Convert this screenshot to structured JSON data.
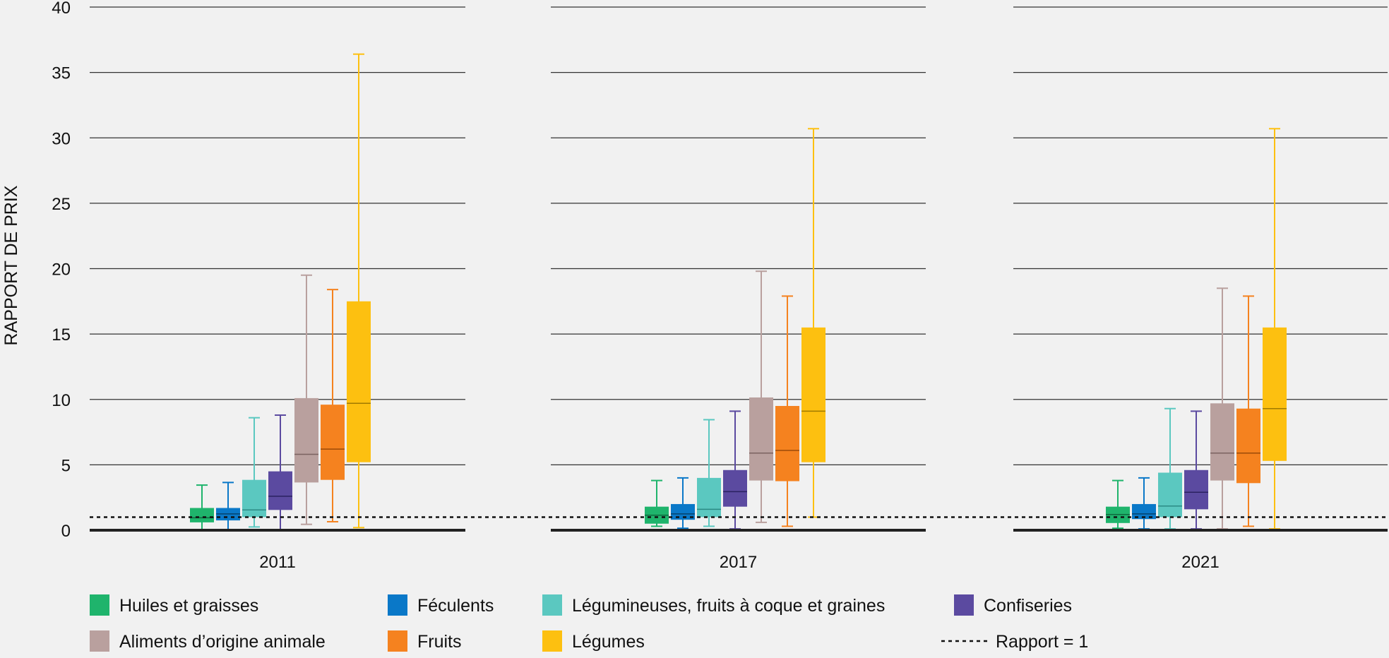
{
  "chart_data": {
    "type": "boxplot",
    "ylabel": "RAPPORT DE PRIX",
    "ylim": [
      0,
      40
    ],
    "yticks": [
      0,
      5,
      10,
      15,
      20,
      25,
      30,
      35,
      40
    ],
    "grid": true,
    "reference_line": {
      "value": 1,
      "label": "Rapport = 1",
      "style": "dotted"
    },
    "legend_placement": "bottom",
    "categories": [
      "Huiles et graisses",
      "Féculents",
      "Légumineuses, fruits à coque et graines",
      "Confiseries",
      "Aliments d’origine animale",
      "Fruits",
      "Légumes"
    ],
    "colors": [
      "#1fb46c",
      "#0a78c8",
      "#5bc8c0",
      "#5b4aa0",
      "#b9a09e",
      "#f5821f",
      "#fdc010"
    ],
    "medianColors": [
      "#0d6b3e",
      "#04436f",
      "#2b8a84",
      "#2b2260",
      "#7a6260",
      "#9c4a08",
      "#a07a00"
    ],
    "panels": [
      {
        "year": "2011",
        "boxes": [
          {
            "min": 0.05,
            "q1": 0.6,
            "median": 0.95,
            "q3": 1.7,
            "max": 3.45
          },
          {
            "min": 0.05,
            "q1": 0.75,
            "median": 1.25,
            "q3": 1.7,
            "max": 3.65
          },
          {
            "min": 0.25,
            "q1": 1.0,
            "median": 1.55,
            "q3": 3.85,
            "max": 8.6
          },
          {
            "min": 0.05,
            "q1": 1.55,
            "median": 2.6,
            "q3": 4.5,
            "max": 8.8
          },
          {
            "min": 0.45,
            "q1": 3.65,
            "median": 5.8,
            "q3": 10.1,
            "max": 19.5
          },
          {
            "min": 0.65,
            "q1": 3.85,
            "median": 6.2,
            "q3": 9.6,
            "max": 18.4
          },
          {
            "min": 0.2,
            "q1": 5.2,
            "median": 9.7,
            "q3": 17.5,
            "max": 36.4
          }
        ]
      },
      {
        "year": "2017",
        "boxes": [
          {
            "min": 0.3,
            "q1": 0.5,
            "median": 1.15,
            "q3": 1.8,
            "max": 3.8
          },
          {
            "min": 0.15,
            "q1": 0.8,
            "median": 1.25,
            "q3": 2.0,
            "max": 4.0
          },
          {
            "min": 0.3,
            "q1": 1.0,
            "median": 1.6,
            "q3": 4.0,
            "max": 8.45
          },
          {
            "min": 0.1,
            "q1": 1.8,
            "median": 2.95,
            "q3": 4.6,
            "max": 9.1
          },
          {
            "min": 0.6,
            "q1": 3.8,
            "median": 5.9,
            "q3": 10.15,
            "max": 19.8
          },
          {
            "min": 0.3,
            "q1": 3.75,
            "median": 6.1,
            "q3": 9.5,
            "max": 17.9
          },
          {
            "min": 1.0,
            "q1": 5.2,
            "median": 9.1,
            "q3": 15.5,
            "max": 30.7
          }
        ]
      },
      {
        "year": "2021",
        "boxes": [
          {
            "min": 0.15,
            "q1": 0.55,
            "median": 1.2,
            "q3": 1.8,
            "max": 3.8
          },
          {
            "min": 0.1,
            "q1": 0.85,
            "median": 1.25,
            "q3": 2.0,
            "max": 4.0
          },
          {
            "min": 0.1,
            "q1": 1.0,
            "median": 1.85,
            "q3": 4.4,
            "max": 9.3
          },
          {
            "min": 0.1,
            "q1": 1.6,
            "median": 2.9,
            "q3": 4.6,
            "max": 9.1
          },
          {
            "min": 0.1,
            "q1": 3.8,
            "median": 5.9,
            "q3": 9.7,
            "max": 18.5
          },
          {
            "min": 0.3,
            "q1": 3.6,
            "median": 5.9,
            "q3": 9.3,
            "max": 17.9
          },
          {
            "min": 0.1,
            "q1": 5.3,
            "median": 9.3,
            "q3": 15.5,
            "max": 30.7
          }
        ]
      }
    ]
  }
}
